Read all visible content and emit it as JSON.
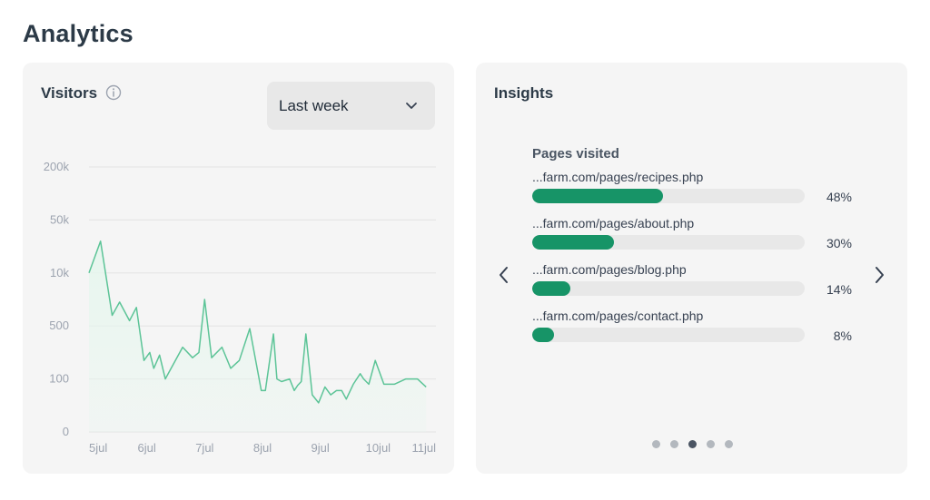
{
  "page": {
    "title": "Analytics"
  },
  "visitors": {
    "title": "Visitors",
    "period_select": {
      "selected": "Last week"
    },
    "chart_data": {
      "type": "area",
      "title": "",
      "xlabel": "",
      "ylabel": "",
      "y_ticks": [
        "0",
        "100",
        "500",
        "10k",
        "50k",
        "200k"
      ],
      "x_ticks": [
        "5jul",
        "6jul",
        "7jul",
        "8jul",
        "9jul",
        "10jul",
        "11jul"
      ],
      "grid": true,
      "color": "#5cc497",
      "fill_color": "#e6f6ee",
      "x_range": [
        0,
        6
      ],
      "y_range": [
        0,
        5
      ],
      "series": [
        {
          "x": [
            0,
            0.2,
            0.4,
            0.53,
            0.7,
            0.82,
            0.95,
            1.05,
            1.12,
            1.22,
            1.32,
            1.42,
            1.62,
            1.79,
            1.9,
            2.0,
            2.12,
            2.3,
            2.45,
            2.6,
            2.78,
            2.98,
            3.05,
            3.19,
            3.25,
            3.33,
            3.47,
            3.55,
            3.61,
            3.67,
            3.75,
            3.86,
            3.97,
            4.08,
            4.18,
            4.28,
            4.37,
            4.45,
            4.57,
            4.69,
            4.75,
            4.84,
            4.95,
            5.1,
            5.28,
            5.48,
            5.68,
            5.83
          ],
          "y": [
            3.0,
            3.6,
            2.2,
            2.45,
            2.1,
            2.35,
            1.35,
            1.5,
            1.2,
            1.45,
            1.0,
            1.2,
            1.6,
            1.4,
            1.5,
            2.5,
            1.4,
            1.6,
            1.2,
            1.35,
            1.95,
            0.78,
            0.78,
            1.85,
            1.0,
            0.95,
            1.0,
            0.78,
            0.88,
            0.95,
            1.85,
            0.7,
            0.55,
            0.85,
            0.7,
            0.78,
            0.78,
            0.62,
            0.9,
            1.1,
            1.0,
            0.9,
            1.35,
            0.9,
            0.9,
            1.0,
            1.0,
            0.85
          ]
        }
      ]
    }
  },
  "insights": {
    "title": "Insights",
    "section_title": "Pages visited",
    "pages": [
      {
        "url": "...farm.com/pages/recipes.php",
        "percent_label": "48%",
        "percent": 48
      },
      {
        "url": "...farm.com/pages/about.php",
        "percent_label": "30%",
        "percent": 30
      },
      {
        "url": "...farm.com/pages/blog.php",
        "percent_label": "14%",
        "percent": 14
      },
      {
        "url": "...farm.com/pages/contact.php",
        "percent_label": "8%",
        "percent": 8
      }
    ],
    "carousel": {
      "total_dots": 5,
      "active_index": 2
    },
    "icons": {
      "prev": "chevron-left-icon",
      "next": "chevron-right-icon"
    }
  },
  "colors": {
    "accent": "#179467",
    "card_bg": "#f5f5f5",
    "title_text": "#2c3a47"
  }
}
